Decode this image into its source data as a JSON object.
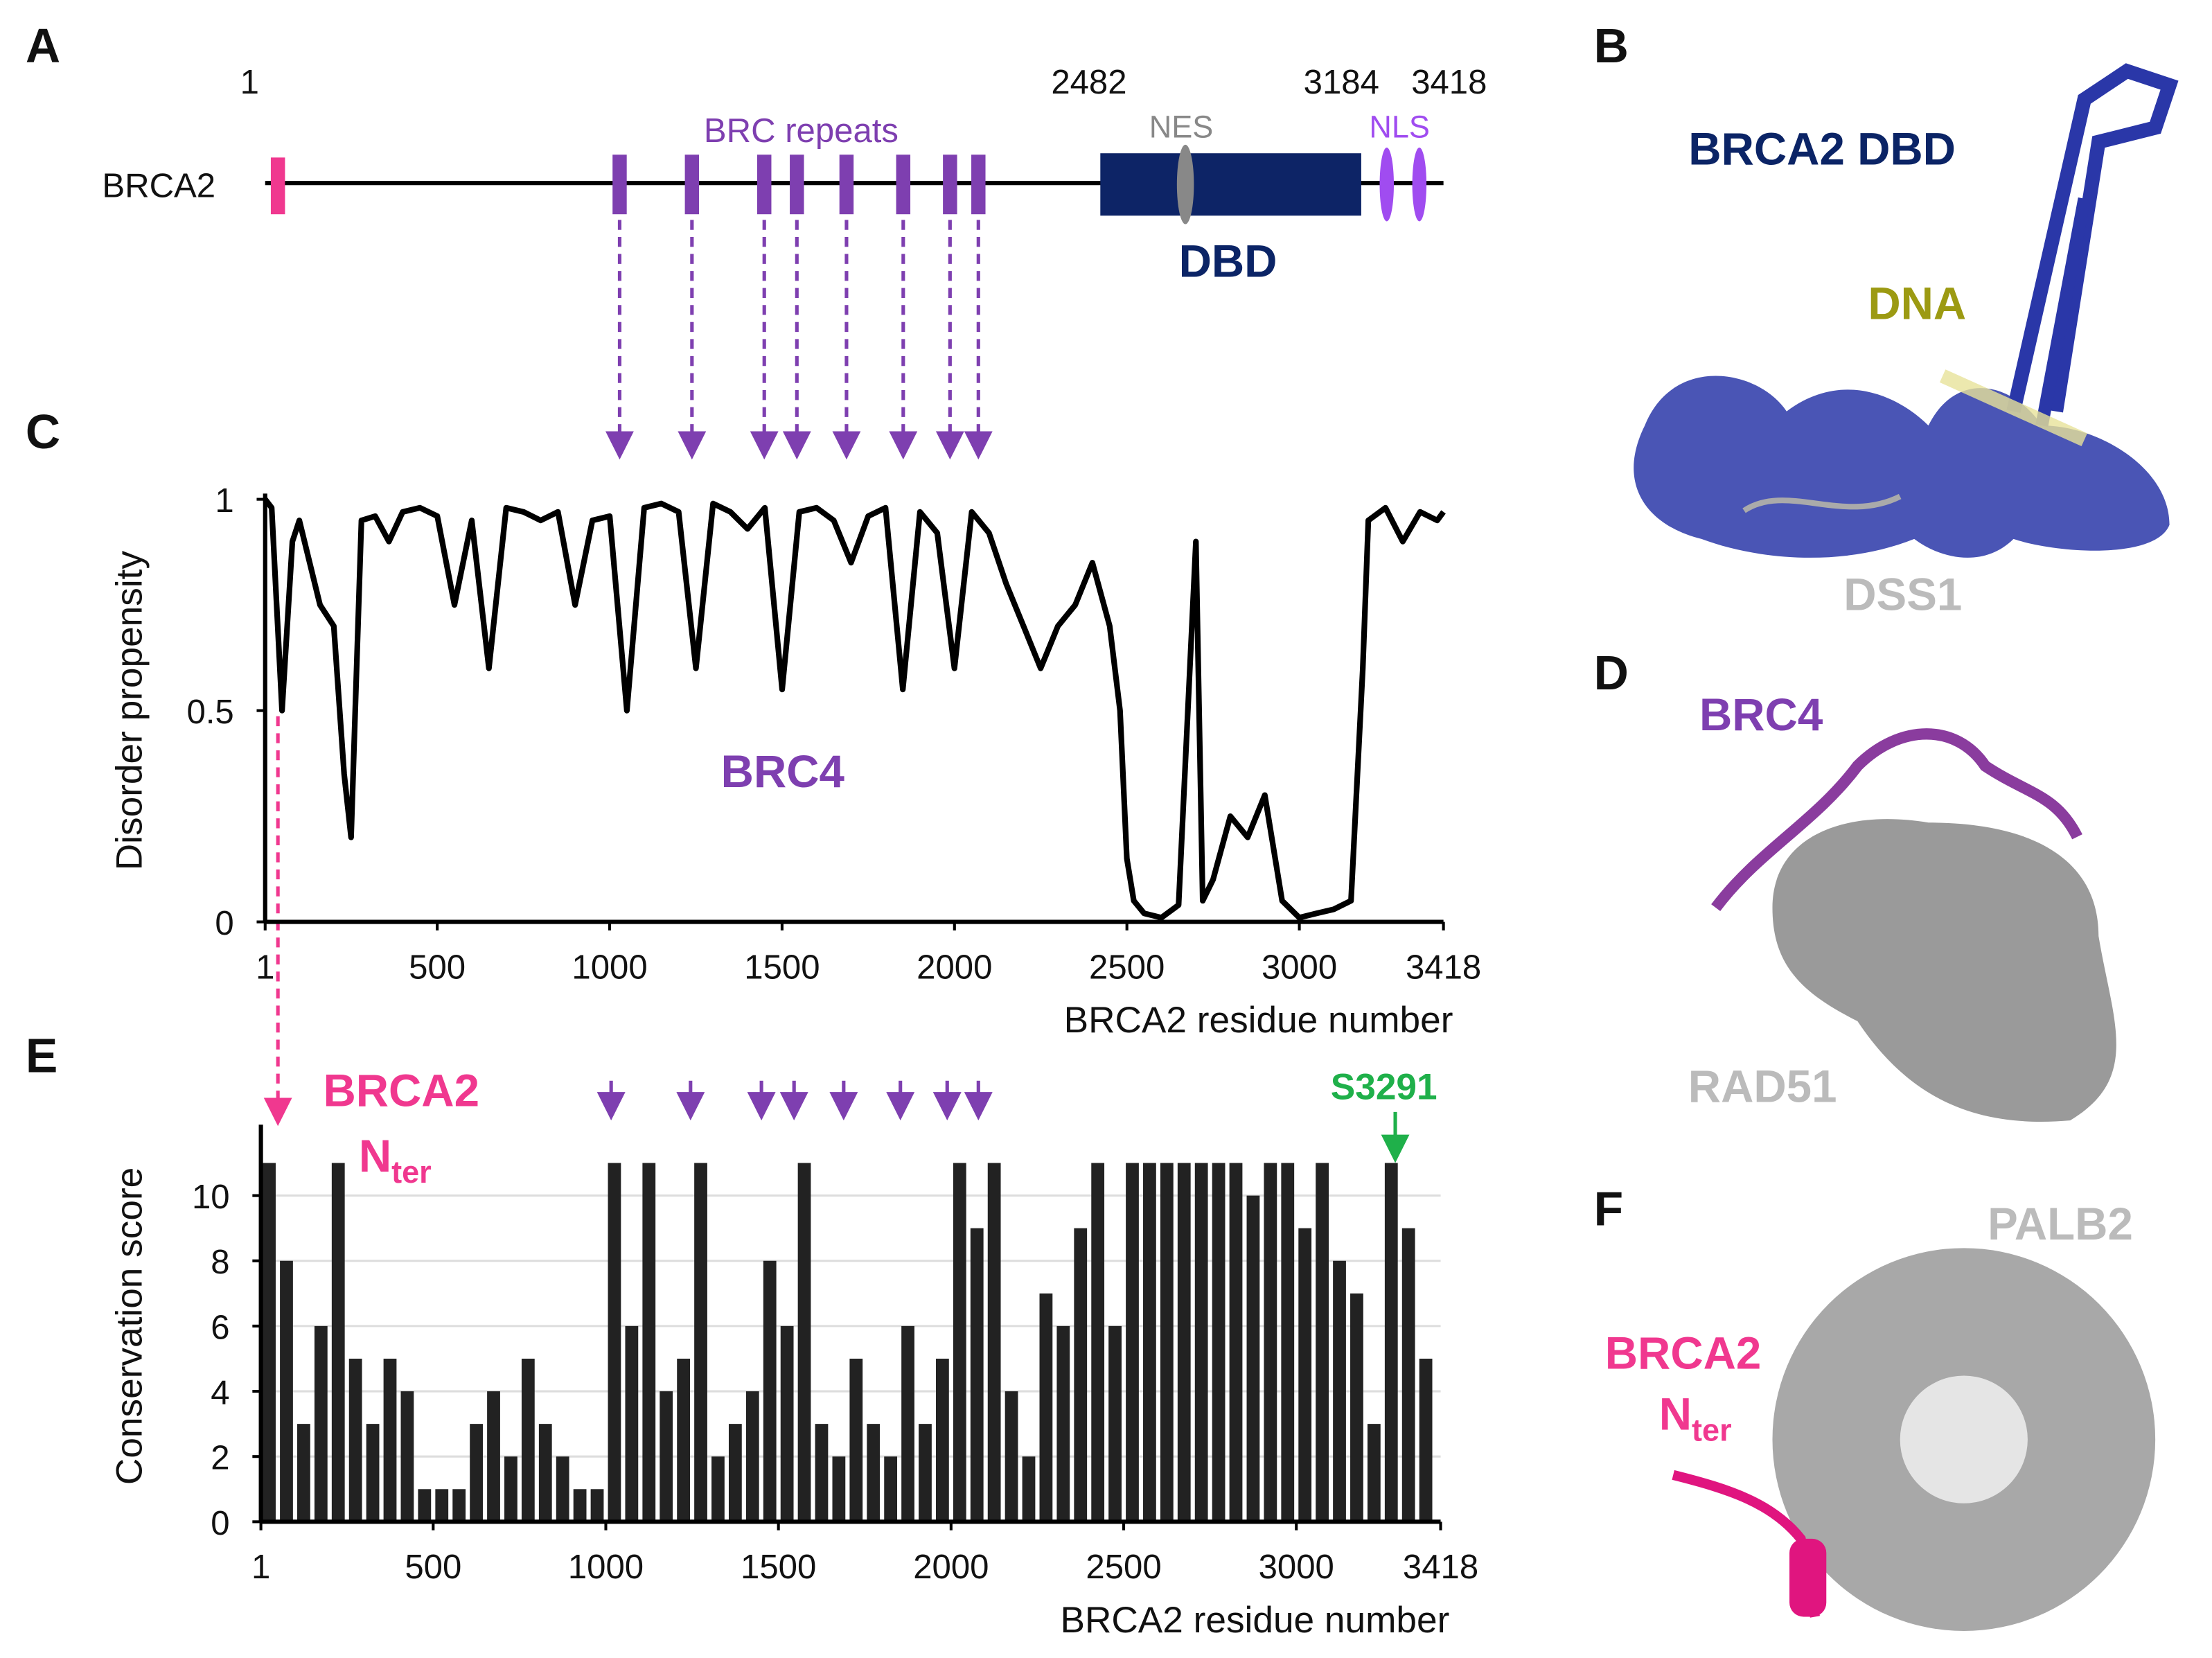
{
  "letters": [
    "A",
    "B",
    "C",
    "D",
    "E",
    "F"
  ],
  "panel_a": {
    "protein": "BRCA2",
    "positions": [
      1,
      2482,
      3184,
      3418
    ],
    "brc_label": "BRC repeats",
    "nes": "NES",
    "nls": "NLS",
    "dbd": "DBD"
  },
  "panel_b": {
    "dbd": "BRCA2 DBD",
    "dna": "DNA",
    "dss1": "DSS1"
  },
  "panel_d": {
    "brc4": "BRC4",
    "rad51": "RAD51"
  },
  "panel_f": {
    "palb2": "PALB2",
    "brca2": "BRCA2",
    "n": "N",
    "ter": "ter"
  },
  "chart_data": [
    {
      "type": "line",
      "color": "#000000",
      "xlabel": "BRCA2 residue number",
      "ylabel": "Disorder propensity",
      "annotation": "BRC4",
      "xlim": [
        1,
        3418
      ],
      "xticks": [
        1,
        500,
        1000,
        1500,
        2000,
        2500,
        3000,
        3418
      ],
      "ylim": [
        0,
        1
      ],
      "yticks": [
        0,
        0.5,
        1
      ],
      "x": [
        1,
        20,
        50,
        80,
        100,
        130,
        160,
        200,
        230,
        250,
        280,
        320,
        360,
        400,
        450,
        500,
        550,
        600,
        650,
        700,
        750,
        800,
        850,
        900,
        950,
        1000,
        1050,
        1100,
        1150,
        1200,
        1250,
        1300,
        1350,
        1400,
        1450,
        1500,
        1550,
        1600,
        1650,
        1700,
        1750,
        1800,
        1850,
        1900,
        1950,
        2000,
        2050,
        2100,
        2150,
        2200,
        2250,
        2300,
        2350,
        2400,
        2450,
        2480,
        2500,
        2520,
        2550,
        2600,
        2650,
        2700,
        2720,
        2750,
        2800,
        2850,
        2900,
        2950,
        3000,
        3050,
        3100,
        3150,
        3184,
        3200,
        3250,
        3300,
        3350,
        3400,
        3418
      ],
      "values": [
        1,
        0.98,
        0.5,
        0.9,
        0.95,
        0.85,
        0.75,
        0.7,
        0.35,
        0.2,
        0.95,
        0.96,
        0.9,
        0.97,
        0.98,
        0.96,
        0.75,
        0.95,
        0.6,
        0.98,
        0.97,
        0.95,
        0.97,
        0.75,
        0.95,
        0.96,
        0.5,
        0.98,
        0.99,
        0.97,
        0.6,
        0.99,
        0.97,
        0.93,
        0.98,
        0.55,
        0.97,
        0.98,
        0.95,
        0.85,
        0.96,
        0.98,
        0.55,
        0.97,
        0.92,
        0.6,
        0.97,
        0.92,
        0.8,
        0.7,
        0.6,
        0.7,
        0.75,
        0.85,
        0.7,
        0.5,
        0.15,
        0.05,
        0.02,
        0.01,
        0.04,
        0.9,
        0.05,
        0.1,
        0.25,
        0.2,
        0.3,
        0.05,
        0.01,
        0.02,
        0.03,
        0.05,
        0.6,
        0.95,
        0.98,
        0.9,
        0.97,
        0.95,
        0.97
      ]
    },
    {
      "type": "bar",
      "color": "#222222",
      "xlabel": "BRCA2 residue number",
      "ylabel": "Conservation score",
      "grid": true,
      "annotations": {
        "brca2": "BRCA2",
        "n": "N",
        "ter": "ter",
        "site": "S3291"
      },
      "xlim": [
        1,
        3418
      ],
      "xticks": [
        1,
        500,
        1000,
        1500,
        2000,
        2500,
        3000,
        3418
      ],
      "ylim": [
        0,
        12
      ],
      "yticks": [
        0,
        2,
        4,
        6,
        8,
        10
      ],
      "x": [
        25,
        75,
        125,
        175,
        225,
        275,
        325,
        375,
        425,
        475,
        525,
        575,
        625,
        675,
        725,
        775,
        825,
        875,
        925,
        975,
        1025,
        1075,
        1125,
        1175,
        1225,
        1275,
        1325,
        1375,
        1425,
        1475,
        1525,
        1575,
        1625,
        1675,
        1725,
        1775,
        1825,
        1875,
        1925,
        1975,
        2025,
        2075,
        2125,
        2175,
        2225,
        2275,
        2325,
        2375,
        2425,
        2475,
        2525,
        2575,
        2625,
        2675,
        2725,
        2775,
        2825,
        2875,
        2925,
        2975,
        3025,
        3075,
        3125,
        3175,
        3225,
        3275,
        3325,
        3375
      ],
      "values": [
        11,
        8,
        3,
        6,
        11,
        5,
        3,
        5,
        4,
        1,
        1,
        1,
        3,
        4,
        2,
        5,
        3,
        2,
        1,
        1,
        11,
        6,
        11,
        4,
        5,
        11,
        2,
        3,
        4,
        8,
        6,
        11,
        3,
        2,
        5,
        3,
        2,
        6,
        3,
        5,
        11,
        9,
        11,
        4,
        2,
        7,
        6,
        9,
        11,
        6,
        11,
        11,
        11,
        11,
        11,
        11,
        11,
        10,
        11,
        11,
        9,
        11,
        8,
        7,
        3,
        11,
        9,
        5
      ]
    }
  ]
}
